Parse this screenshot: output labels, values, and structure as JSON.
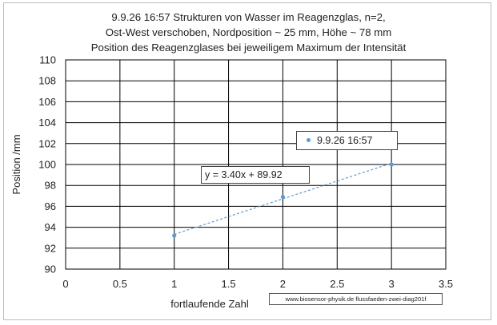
{
  "chart_data": {
    "type": "scatter",
    "title_lines": [
      "9.9.26 16:57  Strukturen von Wasser im Reagenzglas, n=2,",
      "Ost-West verschoben, Nordposition ~ 25  mm, Höhe ~ 78 mm",
      "Position des Reagenzglases bei jeweiligem Maximum der Intensität"
    ],
    "xlabel": "fortlaufende Zahl",
    "ylabel": "Position /mm",
    "xlim": [
      0,
      3.5
    ],
    "ylim": [
      90,
      110
    ],
    "x_ticks": [
      "0",
      "0.5",
      "1",
      "1.5",
      "2",
      "2.5",
      "3",
      "3.5"
    ],
    "y_ticks": [
      "90",
      "92",
      "94",
      "96",
      "98",
      "100",
      "102",
      "104",
      "106",
      "108",
      "110"
    ],
    "grid": true,
    "series": [
      {
        "name": "9.9.26 16:57",
        "color": "#5b9bd5",
        "points": [
          {
            "x": 1,
            "y": 93.2
          },
          {
            "x": 2,
            "y": 96.9
          },
          {
            "x": 3,
            "y": 100.0
          }
        ]
      }
    ],
    "trendline": {
      "type": "linear",
      "slope": 3.4,
      "intercept": 89.92,
      "label": "y = 3.40x + 89.92",
      "style": "dashed",
      "color": "#5b9bd5"
    },
    "source_note": "www.biosensor-physik.de  flussfaeden-zwei-diag201f"
  }
}
